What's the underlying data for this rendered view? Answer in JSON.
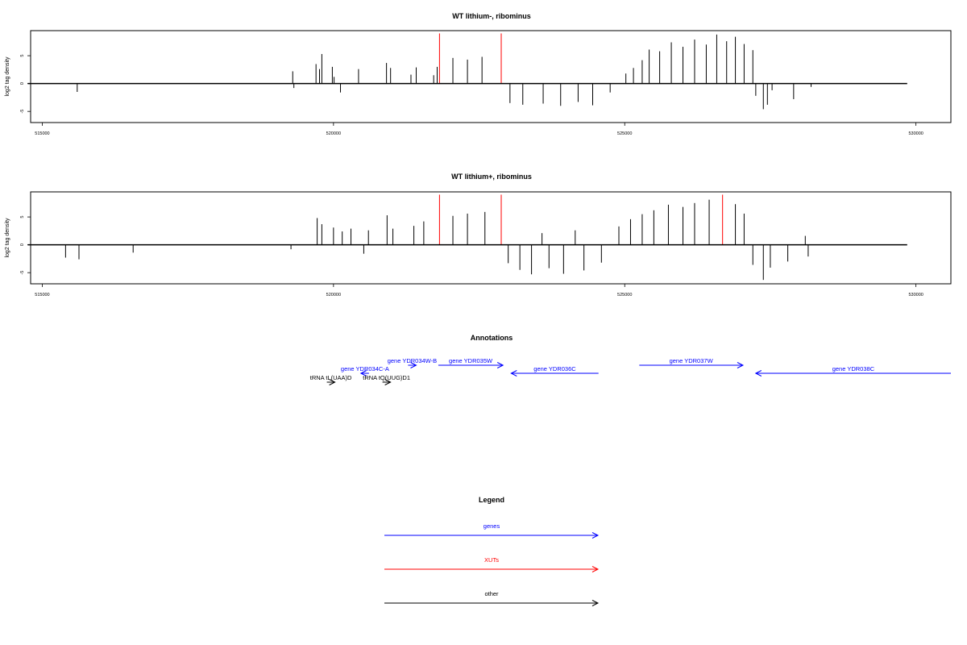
{
  "chart_data": [
    {
      "type": "bar",
      "title": "WT lithium-, ribominus",
      "ylabel": "log2 tag density",
      "xlim": [
        514800,
        530600
      ],
      "ylim": [
        -7,
        9.5
      ],
      "xticks": [
        515000,
        520000,
        525000,
        530000
      ],
      "yticks": [
        -5,
        0,
        5
      ],
      "grid": false,
      "colors": {
        "signal": "#000000",
        "xut": "#ff0000"
      },
      "series": [
        {
          "values": [
            [
              515600,
              -1.5
            ],
            [
              519300,
              2.2
            ],
            [
              519320,
              -0.8
            ],
            [
              519700,
              3.5
            ],
            [
              519760,
              2.6
            ],
            [
              519800,
              5.3
            ],
            [
              519980,
              3.0
            ],
            [
              520010,
              1.2
            ],
            [
              520120,
              -1.6
            ],
            [
              520430,
              2.6
            ],
            [
              520910,
              3.7
            ],
            [
              520980,
              2.8
            ],
            [
              521330,
              1.6
            ],
            [
              521420,
              2.9
            ],
            [
              521720,
              1.5
            ],
            [
              521780,
              3.0
            ],
            [
              521820,
              9.0
            ],
            [
              522050,
              4.6
            ],
            [
              522300,
              4.3
            ],
            [
              522550,
              4.8
            ],
            [
              522880,
              9.0
            ],
            [
              523030,
              -3.5
            ],
            [
              523250,
              -3.8
            ],
            [
              523600,
              -3.6
            ],
            [
              523900,
              -4.0
            ],
            [
              524200,
              -3.3
            ],
            [
              524450,
              -3.9
            ],
            [
              524750,
              -1.6
            ],
            [
              525020,
              1.8
            ],
            [
              525150,
              2.8
            ],
            [
              525300,
              4.2
            ],
            [
              525420,
              6.1
            ],
            [
              525600,
              5.8
            ],
            [
              525800,
              7.4
            ],
            [
              526000,
              6.6
            ],
            [
              526200,
              7.9
            ],
            [
              526400,
              7.0
            ],
            [
              526580,
              8.8
            ],
            [
              526750,
              7.6
            ],
            [
              526900,
              8.4
            ],
            [
              527050,
              7.1
            ],
            [
              527200,
              6.0
            ],
            [
              527250,
              -2.2
            ],
            [
              527380,
              -4.6
            ],
            [
              527450,
              -3.8
            ],
            [
              527530,
              -1.2
            ],
            [
              527900,
              -2.8
            ],
            [
              528200,
              -0.6
            ]
          ]
        }
      ]
    },
    {
      "type": "bar",
      "title": "WT lithium+, ribominus",
      "ylabel": "log2 tag density",
      "xlim": [
        514800,
        530600
      ],
      "ylim": [
        -7,
        9.5
      ],
      "xticks": [
        515000,
        520000,
        525000,
        530000
      ],
      "yticks": [
        -5,
        0,
        5
      ],
      "grid": false,
      "colors": {
        "signal": "#000000",
        "xut": "#ff0000"
      },
      "series": [
        {
          "values": [
            [
              515400,
              -2.3
            ],
            [
              515630,
              -2.6
            ],
            [
              516560,
              -1.4
            ],
            [
              519270,
              -0.8
            ],
            [
              519720,
              4.8
            ],
            [
              519800,
              3.7
            ],
            [
              520000,
              3.1
            ],
            [
              520150,
              2.4
            ],
            [
              520300,
              2.9
            ],
            [
              520520,
              -1.6
            ],
            [
              520600,
              2.6
            ],
            [
              520920,
              5.3
            ],
            [
              521020,
              2.9
            ],
            [
              521380,
              3.4
            ],
            [
              521550,
              4.2
            ],
            [
              521820,
              9.0
            ],
            [
              522050,
              5.2
            ],
            [
              522300,
              5.6
            ],
            [
              522600,
              5.9
            ],
            [
              522880,
              9.0
            ],
            [
              523000,
              -3.3
            ],
            [
              523200,
              -4.5
            ],
            [
              523400,
              -5.3
            ],
            [
              523580,
              2.1
            ],
            [
              523700,
              -4.2
            ],
            [
              523950,
              -5.2
            ],
            [
              524150,
              2.6
            ],
            [
              524300,
              -4.6
            ],
            [
              524600,
              -3.2
            ],
            [
              524900,
              3.3
            ],
            [
              525100,
              4.6
            ],
            [
              525300,
              5.5
            ],
            [
              525500,
              6.2
            ],
            [
              525750,
              7.2
            ],
            [
              526000,
              6.8
            ],
            [
              526200,
              7.5
            ],
            [
              526450,
              8.1
            ],
            [
              526680,
              9.0
            ],
            [
              526900,
              7.3
            ],
            [
              527050,
              5.6
            ],
            [
              527200,
              -3.6
            ],
            [
              527380,
              -6.3
            ],
            [
              527500,
              -4.1
            ],
            [
              527800,
              -3.0
            ],
            [
              528100,
              1.6
            ],
            [
              528150,
              -2.1
            ]
          ]
        }
      ]
    }
  ],
  "annotations": {
    "title": "Annotations",
    "features": [
      {
        "label": "tRNA tL(UAA)D",
        "strand": "+",
        "category": "other",
        "start": 519950,
        "end": 519960,
        "track": 0
      },
      {
        "label": "gene YDR034C-A",
        "strand": "-",
        "category": "genes",
        "start": 520520,
        "end": 520560,
        "track": 1
      },
      {
        "label": "tRNA tQ(UUG)D1",
        "strand": "+",
        "category": "other",
        "start": 520900,
        "end": 520920,
        "track": 0
      },
      {
        "label": "gene YDR034W-B",
        "strand": "+",
        "category": "genes",
        "start": 521280,
        "end": 521420,
        "track": 2
      },
      {
        "label": "gene YDR035W",
        "strand": "+",
        "category": "genes",
        "start": 521800,
        "end": 522910,
        "track": 2
      },
      {
        "label": "gene YDR036C",
        "strand": "-",
        "category": "genes",
        "start": 523050,
        "end": 524550,
        "track": 1
      },
      {
        "label": "gene YDR037W",
        "strand": "+",
        "category": "genes",
        "start": 525250,
        "end": 527030,
        "track": 2
      },
      {
        "label": "gene YDR038C",
        "strand": "-",
        "category": "genes",
        "start": 527250,
        "end": 530600,
        "track": 1
      }
    ]
  },
  "legend": {
    "title": "Legend",
    "items": [
      {
        "label": "genes",
        "color": "#0000ff"
      },
      {
        "label": "XUTs",
        "color": "#ff0000"
      },
      {
        "label": "other",
        "color": "#000000"
      }
    ]
  }
}
